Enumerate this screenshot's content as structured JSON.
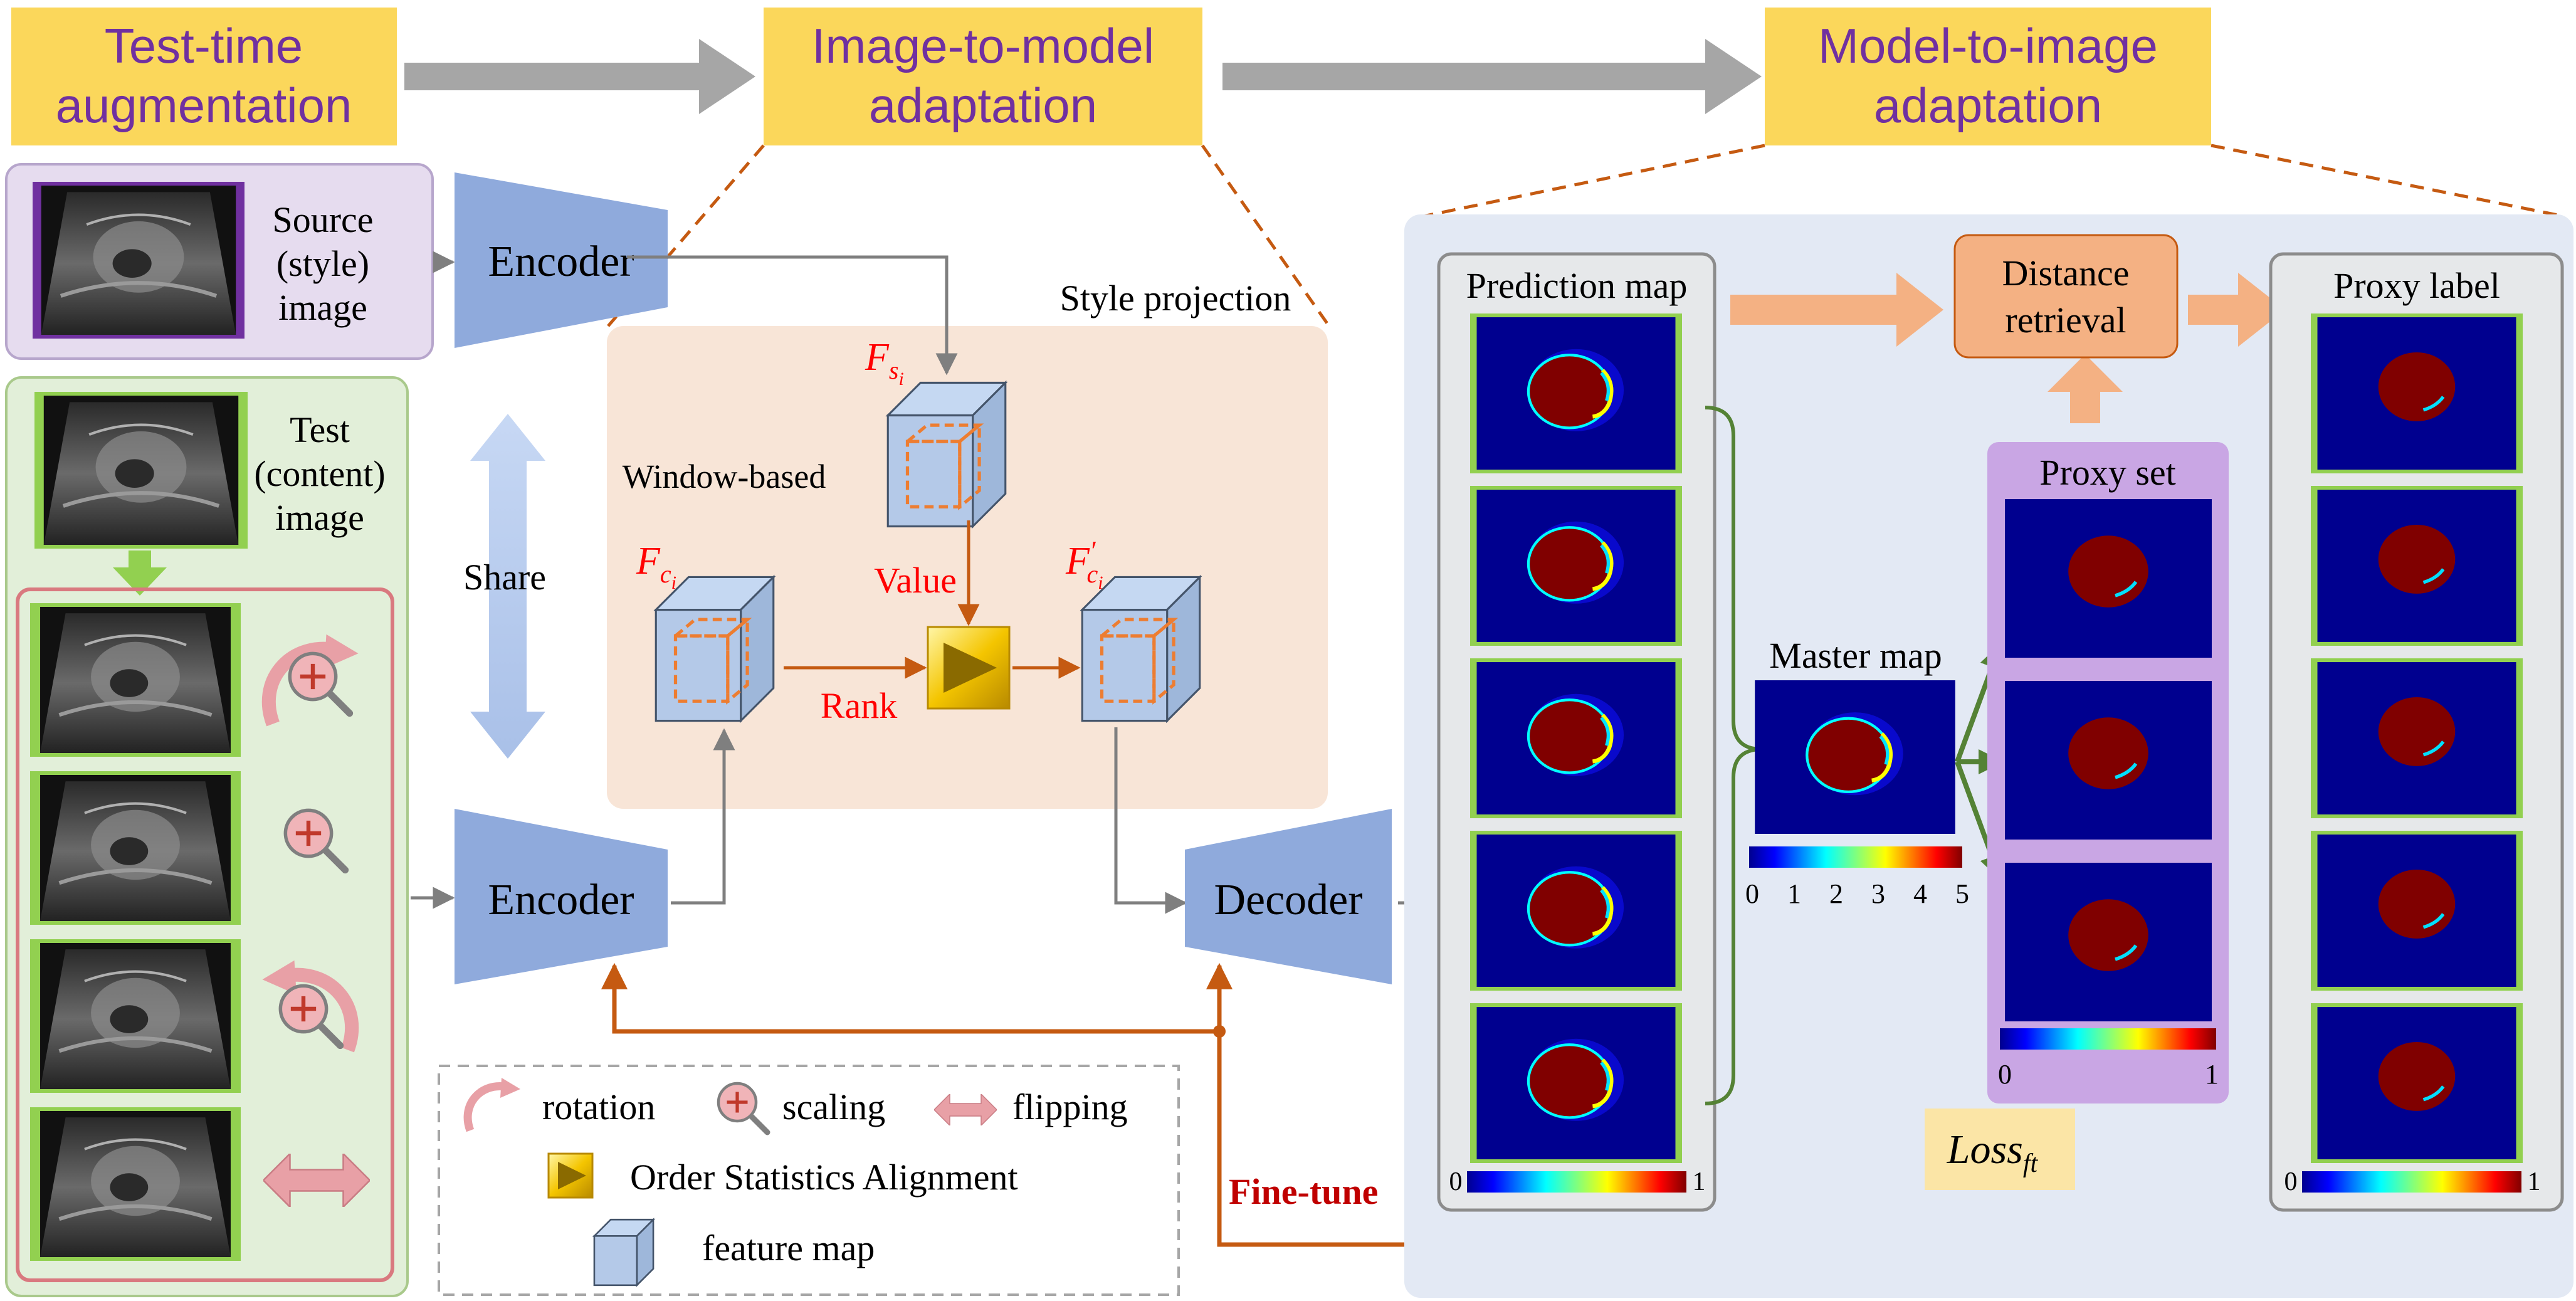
{
  "stages": {
    "tta": [
      "Test-time",
      "augmentation"
    ],
    "i2m": [
      "Image-to-model",
      "adaptation"
    ],
    "m2i": [
      "Model-to-image",
      "adaptation"
    ]
  },
  "source_label": [
    "Source",
    "(style)",
    "image"
  ],
  "test_label": [
    "Test",
    "(content)",
    "image"
  ],
  "encoder_label": "Encoder",
  "decoder_label": "Decoder",
  "share_label": "Share",
  "style_projection_label": "Style  projection",
  "window_based_label": "Window-based",
  "value_label": "Value",
  "rank_label": "Rank",
  "features": {
    "fs": {
      "base": "F",
      "sub": "s",
      "subsub": "i"
    },
    "fc": {
      "base": "F",
      "sub": "c",
      "subsub": "i"
    },
    "fcp": {
      "base": "F",
      "prime": "′",
      "sub": "c",
      "subsub": "i"
    }
  },
  "prediction_map_label": "Prediction map",
  "master_map_label": "Master map",
  "proxy_set_label": "Proxy set",
  "proxy_label_label": "Proxy label",
  "distance_retrieval_label": [
    "Distance",
    "retrieval"
  ],
  "loss": {
    "base": "Loss",
    "sub": "ft"
  },
  "finetune_label": "Fine-tune",
  "colorbars": {
    "master_ticks": [
      "0",
      "1",
      "2",
      "3",
      "4",
      "5"
    ],
    "unit_ticks": [
      "0",
      "1"
    ]
  },
  "legend": {
    "rotation": "rotation",
    "scaling": "scaling",
    "flipping": "flipping",
    "osa": "Order Statistics Alignment",
    "feature_map": "feature map"
  },
  "colors": {
    "stage_box": "#fbd75b",
    "stage_text": "#7030a0",
    "encoder_blue": "#8faadc",
    "orange_arrow": "#c55a11",
    "finetune_red": "#c00000",
    "feature_red": "#ff0000",
    "map_frame_green": "#92d050",
    "pink": "#e8a0a6"
  }
}
